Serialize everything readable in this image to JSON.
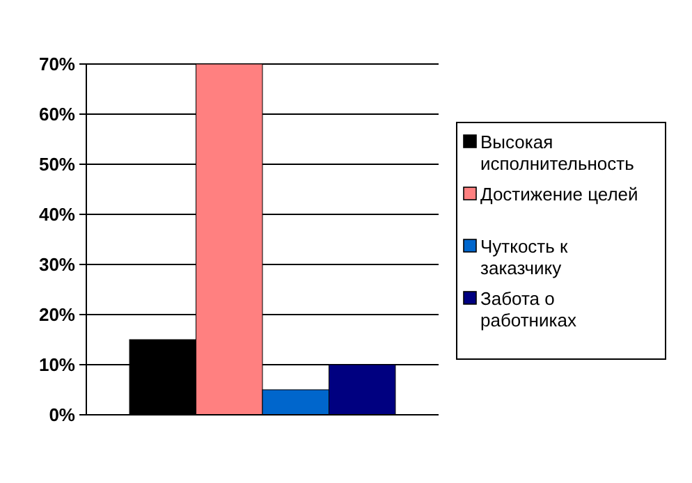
{
  "chart_data": {
    "type": "bar",
    "categories": [
      null
    ],
    "series": [
      {
        "name": "Высокая исполнительность",
        "color": "#000000",
        "values": [
          15
        ]
      },
      {
        "name": "Достижение целей",
        "color": "#ff8080",
        "values": [
          70
        ]
      },
      {
        "name": "Чуткость к заказчику",
        "color": "#0066cc",
        "values": [
          5
        ]
      },
      {
        "name": "Забота о работниках",
        "color": "#000080",
        "values": [
          10
        ]
      }
    ],
    "ylim": [
      0,
      70
    ],
    "yticks": [
      {
        "value": 0,
        "label": "0%"
      },
      {
        "value": 10,
        "label": "10%"
      },
      {
        "value": 20,
        "label": "20%"
      },
      {
        "value": 30,
        "label": "30%"
      },
      {
        "value": 40,
        "label": "40%"
      },
      {
        "value": 50,
        "label": "50%"
      },
      {
        "value": 60,
        "label": "60%"
      },
      {
        "value": 70,
        "label": "70%"
      }
    ],
    "grid": "y",
    "legend": "right"
  }
}
